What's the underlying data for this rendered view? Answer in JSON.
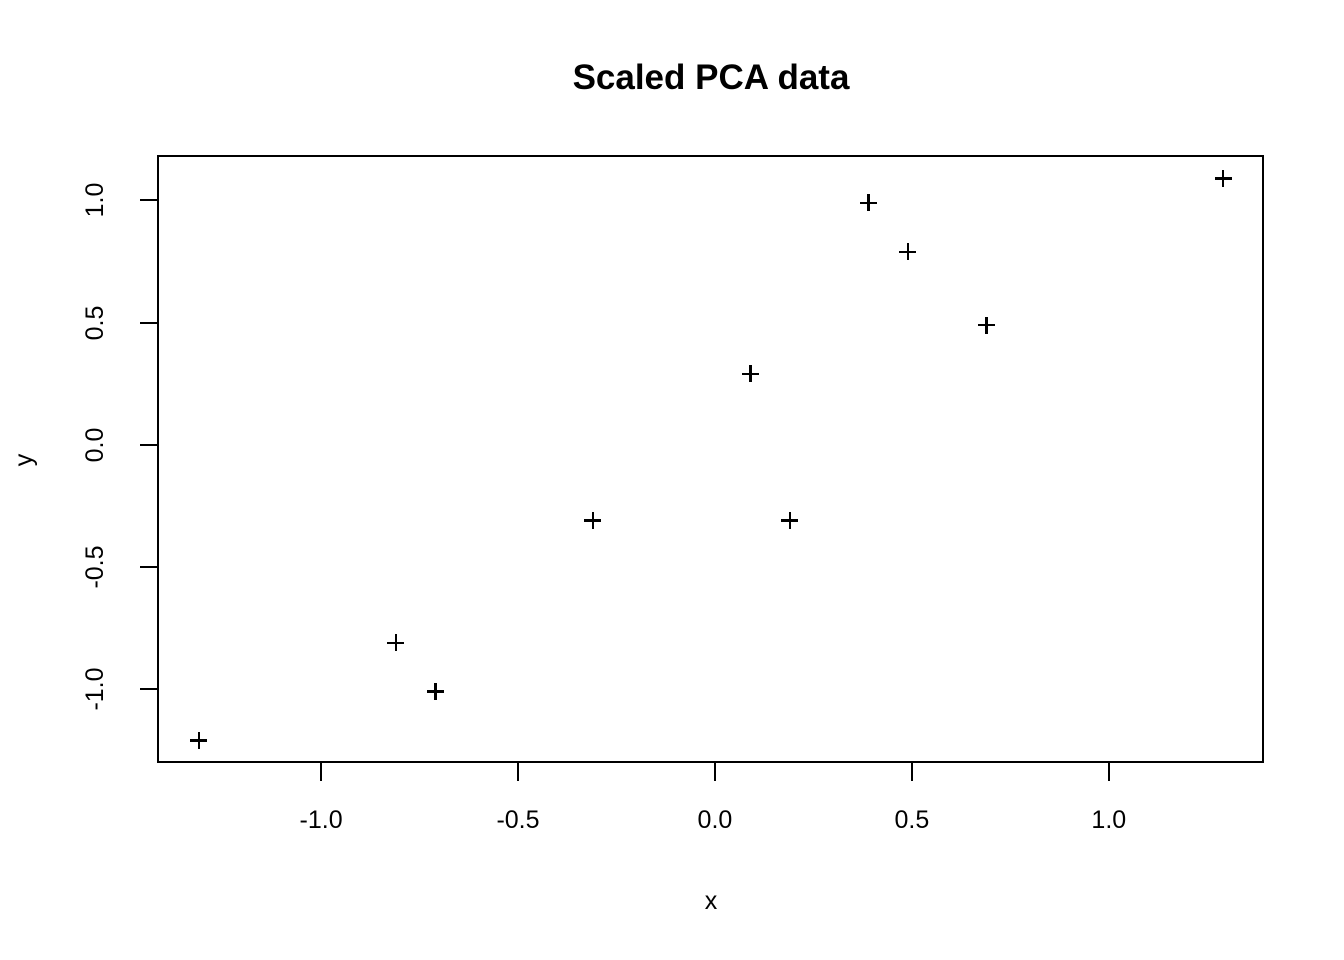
{
  "title": "Scaled PCA data",
  "colors": {
    "background": "#ffffff",
    "foreground": "#000000",
    "marker": "#000000"
  },
  "chart_data": {
    "type": "scatter",
    "title": "Scaled PCA data",
    "xlabel": "x",
    "ylabel": "y",
    "marker_symbol": "plus",
    "grid": false,
    "legend": false,
    "xlim": [
      -1.414,
      1.394
    ],
    "ylim": [
      -1.302,
      1.182
    ],
    "x_ticks": [
      {
        "value": -1.0,
        "label": "-1.0"
      },
      {
        "value": -0.5,
        "label": "-0.5"
      },
      {
        "value": 0.0,
        "label": "0.0"
      },
      {
        "value": 0.5,
        "label": "0.5"
      },
      {
        "value": 1.0,
        "label": "1.0"
      }
    ],
    "y_ticks": [
      {
        "value": 1.0,
        "label": "1.0"
      },
      {
        "value": 0.5,
        "label": "0.5"
      },
      {
        "value": 0.0,
        "label": "0.0"
      },
      {
        "value": -0.5,
        "label": "-0.5"
      },
      {
        "value": -1.0,
        "label": "-1.0"
      }
    ],
    "points": [
      {
        "x": 0.69,
        "y": 0.49
      },
      {
        "x": -1.31,
        "y": -1.21
      },
      {
        "x": 0.39,
        "y": 0.99
      },
      {
        "x": 0.09,
        "y": 0.29
      },
      {
        "x": 1.29,
        "y": 1.09
      },
      {
        "x": 0.49,
        "y": 0.79
      },
      {
        "x": 0.19,
        "y": -0.31
      },
      {
        "x": -0.81,
        "y": -0.81
      },
      {
        "x": -0.31,
        "y": -0.31
      },
      {
        "x": -0.71,
        "y": -1.01
      }
    ]
  }
}
